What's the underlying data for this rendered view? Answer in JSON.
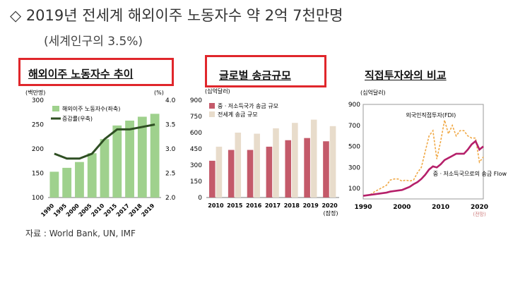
{
  "header": {
    "headline": "◇ 2019년 전세계 해외이주 노동자수 약 2억 7천만명",
    "subheadline": "(세계인구의 3.5%)"
  },
  "source": "자료 : World Bank, UN, IMF",
  "colors": {
    "highlight_box": "#e0262b",
    "bar_green": "#9fd18d",
    "line_dark_green": "#2f4f23",
    "bar_red_hatched": "#c45a6a",
    "bar_beige": "#e8dccb",
    "fdi_orange": "#f0a845",
    "remit_magenta": "#b5206a"
  },
  "chart_data": [
    {
      "type": "bar",
      "title": "해외이주 노동자수 추이",
      "ylabel_left": "(백만명)",
      "ylabel_right": "(%)",
      "categories": [
        "1990",
        "1995",
        "2000",
        "2005",
        "2010",
        "2015",
        "2017",
        "2018",
        "2019"
      ],
      "ylim": [
        100,
        300
      ],
      "ylim_right": [
        2.0,
        4.0
      ],
      "yticks": [
        "100",
        "150",
        "200",
        "250",
        "300"
      ],
      "yticks_right": [
        "2.0",
        "2.5",
        "3.0",
        "3.5",
        "4.0"
      ],
      "legend": [
        "해외이주 노동자수(좌축)",
        "증감률(우축)"
      ],
      "legend_position": "top-left",
      "series": [
        {
          "name": "해외이주 노동자수(좌축)",
          "axis": "left",
          "kind": "bar",
          "values": [
            153,
            161,
            173,
            191,
            220,
            248,
            258,
            266,
            272
          ]
        },
        {
          "name": "증감률(우축)",
          "axis": "right",
          "kind": "line",
          "values": [
            2.9,
            2.8,
            2.8,
            2.9,
            3.2,
            3.4,
            3.4,
            3.45,
            3.5
          ]
        }
      ]
    },
    {
      "type": "bar",
      "title": "글로벌 송금규모",
      "ylabel": "(십억달러)",
      "categories": [
        "2010",
        "2015",
        "2016",
        "2017",
        "2018",
        "2019",
        "2020"
      ],
      "category_note": "(잠정)",
      "ylim": [
        0,
        900
      ],
      "yticks": [
        "0",
        "150",
        "300",
        "450",
        "600",
        "750",
        "900"
      ],
      "legend": [
        "중ㆍ저소득국가 송금 규모",
        "전세계 송금 규모"
      ],
      "legend_position": "top",
      "series": [
        {
          "name": "중ㆍ저소득국가 송금 규모",
          "values": [
            340,
            440,
            440,
            470,
            530,
            550,
            520
          ]
        },
        {
          "name": "전세계 송금 규모",
          "values": [
            470,
            600,
            590,
            640,
            690,
            720,
            660
          ]
        }
      ]
    },
    {
      "type": "line",
      "title": "직접투자와의 비교",
      "ylabel": "(십억달러)",
      "xlim": [
        1990,
        2021
      ],
      "xticks": [
        "1990",
        "2000",
        "2010",
        "2020"
      ],
      "xtick_note": "(전망)",
      "ylim": [
        0,
        900
      ],
      "yticks": [
        "100",
        "300",
        "500",
        "700",
        "900"
      ],
      "series": [
        {
          "name": "외국인직접투자(FDI)",
          "style": "dashed",
          "x": [
            1990,
            1991,
            1992,
            1993,
            1994,
            1995,
            1996,
            1997,
            1998,
            1999,
            2000,
            2001,
            2002,
            2003,
            2004,
            2005,
            2006,
            2007,
            2008,
            2009,
            2010,
            2011,
            2012,
            2013,
            2014,
            2015,
            2016,
            2017,
            2018,
            2019,
            2020,
            2021
          ],
          "y": [
            30,
            35,
            45,
            70,
            90,
            110,
            130,
            180,
            190,
            190,
            170,
            180,
            170,
            180,
            250,
            300,
            450,
            600,
            650,
            380,
            550,
            750,
            620,
            700,
            600,
            650,
            650,
            600,
            580,
            580,
            350,
            400
          ]
        },
        {
          "name": "중ㆍ저소득국으로의 송금 Flow",
          "style": "solid",
          "x": [
            1990,
            1991,
            1992,
            1993,
            1994,
            1995,
            1996,
            1997,
            1998,
            1999,
            2000,
            2001,
            2002,
            2003,
            2004,
            2005,
            2006,
            2007,
            2008,
            2009,
            2010,
            2011,
            2012,
            2013,
            2014,
            2015,
            2016,
            2017,
            2018,
            2019,
            2020,
            2021
          ],
          "y": [
            30,
            35,
            40,
            45,
            50,
            55,
            60,
            70,
            75,
            80,
            85,
            100,
            115,
            140,
            160,
            190,
            230,
            280,
            310,
            300,
            330,
            370,
            390,
            410,
            430,
            430,
            430,
            470,
            520,
            550,
            470,
            500
          ]
        }
      ]
    }
  ]
}
